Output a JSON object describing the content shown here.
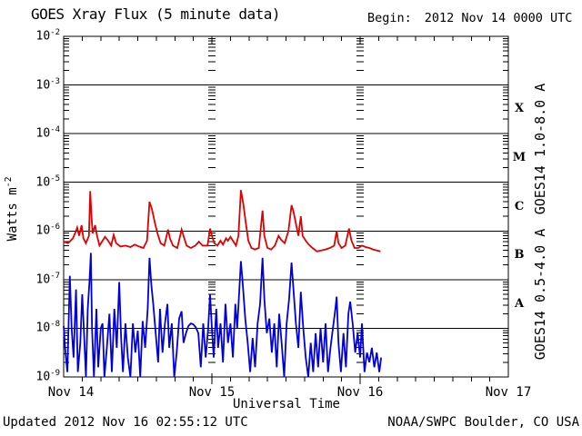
{
  "header": {
    "title": "GOES Xray Flux (5 minute data)",
    "begin_label": "Begin:",
    "begin_value": "2012 Nov 14 0000 UTC"
  },
  "footer": {
    "updated": "Updated 2012 Nov 16 02:55:12 UTC",
    "credit": "NOAA/SWPC Boulder, CO USA"
  },
  "colors": {
    "red_series": "#e00000",
    "blue_series": "#0000dd",
    "axis": "#000000",
    "background": "#ffffff"
  },
  "chart_data": {
    "type": "line",
    "title": "GOES Xray Flux (5 minute data)",
    "xlabel": "Universal Time",
    "ylabel_base": "Watts m",
    "ylabel_exp": "-2",
    "x_range_hours": [
      0,
      72
    ],
    "x_start": "2012 Nov 14 0000 UTC",
    "x_ticks": [
      {
        "hour": 0,
        "label": "Nov 14"
      },
      {
        "hour": 24,
        "label": "Nov 15"
      },
      {
        "hour": 48,
        "label": "Nov 16"
      },
      {
        "hour": 72,
        "label": "Nov 17"
      }
    ],
    "x_minor_tick_hours": 3,
    "day_boundary_hours": [
      24,
      48
    ],
    "y_scale": "log10",
    "y_log_range": [
      -9,
      -2
    ],
    "y_tick_exponents": [
      -2,
      -3,
      -4,
      -5,
      -6,
      -7,
      -8,
      -9
    ],
    "grid_decades": [
      -3,
      -4,
      -5,
      -6,
      -7,
      -8
    ],
    "flare_classes": [
      {
        "label": "X",
        "log_center": -3.5
      },
      {
        "label": "M",
        "log_center": -4.5
      },
      {
        "label": "C",
        "log_center": -5.5
      },
      {
        "label": "B",
        "log_center": -6.5
      },
      {
        "label": "A",
        "log_center": -7.5
      }
    ],
    "series": [
      {
        "name": "GOES14 1.0-8.0 A",
        "color": "#e00000",
        "points_format": "[hours_since_start, log10_watts_m2]",
        "points": [
          [
            0,
            -6.22
          ],
          [
            0.7,
            -6.25
          ],
          [
            1.5,
            -6.15
          ],
          [
            2,
            -6
          ],
          [
            2.2,
            -5.93
          ],
          [
            2.5,
            -6.1
          ],
          [
            2.9,
            -5.88
          ],
          [
            3.2,
            -6.15
          ],
          [
            3.6,
            -6.25
          ],
          [
            4.1,
            -6.1
          ],
          [
            4.3,
            -5.18
          ],
          [
            4.5,
            -5.7
          ],
          [
            4.7,
            -6.05
          ],
          [
            5.1,
            -5.88
          ],
          [
            5.4,
            -6.1
          ],
          [
            5.8,
            -6.3
          ],
          [
            6.3,
            -6.2
          ],
          [
            6.7,
            -6.12
          ],
          [
            7.2,
            -6.2
          ],
          [
            7.7,
            -6.3
          ],
          [
            8.1,
            -6.08
          ],
          [
            8.5,
            -6.25
          ],
          [
            9.2,
            -6.32
          ],
          [
            10,
            -6.3
          ],
          [
            10.8,
            -6.33
          ],
          [
            11.5,
            -6.28
          ],
          [
            12.2,
            -6.32
          ],
          [
            12.9,
            -6.35
          ],
          [
            13.5,
            -6.2
          ],
          [
            13.9,
            -5.4
          ],
          [
            14.3,
            -5.55
          ],
          [
            14.8,
            -5.85
          ],
          [
            15.2,
            -6.05
          ],
          [
            15.7,
            -6.25
          ],
          [
            16.3,
            -6.3
          ],
          [
            16.9,
            -5.97
          ],
          [
            17.2,
            -6.15
          ],
          [
            17.7,
            -6.3
          ],
          [
            18.4,
            -6.35
          ],
          [
            19.1,
            -5.97
          ],
          [
            19.4,
            -6.1
          ],
          [
            19.9,
            -6.3
          ],
          [
            20.6,
            -6.35
          ],
          [
            21.3,
            -6.3
          ],
          [
            21.9,
            -6.22
          ],
          [
            22.5,
            -6.3
          ],
          [
            23.3,
            -6.3
          ],
          [
            23.7,
            -5.95
          ],
          [
            24,
            -6.1
          ],
          [
            24.4,
            -6.25
          ],
          [
            24.9,
            -6.3
          ],
          [
            25.4,
            -6.2
          ],
          [
            25.8,
            -6.28
          ],
          [
            26.3,
            -6.15
          ],
          [
            26.6,
            -6.2
          ],
          [
            27,
            -6.12
          ],
          [
            27.4,
            -6.2
          ],
          [
            27.9,
            -6.3
          ],
          [
            28.3,
            -6.1
          ],
          [
            28.7,
            -5.16
          ],
          [
            29.1,
            -5.45
          ],
          [
            29.5,
            -5.85
          ],
          [
            29.9,
            -6.2
          ],
          [
            30.4,
            -6.35
          ],
          [
            31,
            -6.38
          ],
          [
            31.6,
            -6.35
          ],
          [
            32.2,
            -5.58
          ],
          [
            32.5,
            -6.1
          ],
          [
            33,
            -6.35
          ],
          [
            33.6,
            -6.38
          ],
          [
            34.2,
            -6.3
          ],
          [
            34.8,
            -6.1
          ],
          [
            35.2,
            -6.18
          ],
          [
            35.8,
            -6.25
          ],
          [
            36.4,
            -6
          ],
          [
            36.9,
            -5.47
          ],
          [
            37.2,
            -5.6
          ],
          [
            37.6,
            -5.85
          ],
          [
            38,
            -6.1
          ],
          [
            38.4,
            -5.7
          ],
          [
            38.7,
            -6.1
          ],
          [
            39.2,
            -6.2
          ],
          [
            39.7,
            -6.28
          ],
          [
            40.3,
            -6.35
          ],
          [
            41,
            -6.42
          ],
          [
            41.7,
            -6.4
          ],
          [
            42.4,
            -6.38
          ],
          [
            43.1,
            -6.35
          ],
          [
            43.8,
            -6.3
          ],
          [
            44.2,
            -6
          ],
          [
            44.5,
            -6.25
          ],
          [
            45,
            -6.35
          ],
          [
            45.6,
            -6.3
          ],
          [
            46.2,
            -5.95
          ],
          [
            46.6,
            -6.2
          ],
          [
            47.1,
            -6.35
          ],
          [
            47.7,
            -6.35
          ],
          [
            48.3,
            -6.3
          ],
          [
            48.9,
            -6.33
          ],
          [
            49.5,
            -6.35
          ],
          [
            50.1,
            -6.38
          ],
          [
            50.7,
            -6.4
          ],
          [
            51.3,
            -6.42
          ]
        ]
      },
      {
        "name": "GOES14 0.5-4.0 A",
        "color": "#0000dd",
        "points_format": "[hours_since_start, log10_watts_m2]",
        "points": [
          [
            0,
            -7.95
          ],
          [
            0.3,
            -8.5
          ],
          [
            0.6,
            -8.9
          ],
          [
            1,
            -6.92
          ],
          [
            1.3,
            -8
          ],
          [
            1.6,
            -8.6
          ],
          [
            2,
            -7.2
          ],
          [
            2.3,
            -8.9
          ],
          [
            2.7,
            -8.3
          ],
          [
            3,
            -7.3
          ],
          [
            3.3,
            -8.1
          ],
          [
            3.6,
            -9
          ],
          [
            3.9,
            -7.6
          ],
          [
            4.2,
            -7
          ],
          [
            4.4,
            -6.45
          ],
          [
            4.6,
            -8
          ],
          [
            4.9,
            -9
          ],
          [
            5.3,
            -7.6
          ],
          [
            5.6,
            -8.8
          ],
          [
            6,
            -8
          ],
          [
            6.3,
            -7.9
          ],
          [
            6.6,
            -9
          ],
          [
            7,
            -8.4
          ],
          [
            7.4,
            -7.7
          ],
          [
            7.8,
            -8.9
          ],
          [
            8.2,
            -7.6
          ],
          [
            8.6,
            -8.4
          ],
          [
            9,
            -7.05
          ],
          [
            9.3,
            -8.2
          ],
          [
            9.6,
            -8.9
          ],
          [
            10,
            -7.9
          ],
          [
            10.4,
            -8.6
          ],
          [
            10.8,
            -9
          ],
          [
            11.2,
            -7.9
          ],
          [
            11.6,
            -8.5
          ],
          [
            12,
            -8.05
          ],
          [
            12.4,
            -9
          ],
          [
            12.8,
            -7.85
          ],
          [
            13.2,
            -8.4
          ],
          [
            13.6,
            -7.6
          ],
          [
            13.9,
            -6.55
          ],
          [
            14.2,
            -7.1
          ],
          [
            14.5,
            -7.5
          ],
          [
            14.9,
            -8.1
          ],
          [
            15.3,
            -8.7
          ],
          [
            15.6,
            -7.6
          ],
          [
            16,
            -8.5
          ],
          [
            16.4,
            -7.9
          ],
          [
            16.8,
            -7.5
          ],
          [
            17.1,
            -8.4
          ],
          [
            17.5,
            -7.9
          ],
          [
            17.9,
            -9
          ],
          [
            18.3,
            -8.5
          ],
          [
            18.7,
            -7.8
          ],
          [
            19.1,
            -7.65
          ],
          [
            19.4,
            -8.3
          ],
          [
            19.8,
            -8.1
          ],
          [
            20.2,
            -7.95
          ],
          [
            20.6,
            -7.9
          ],
          [
            21,
            -7.92
          ],
          [
            21.4,
            -7.98
          ],
          [
            21.8,
            -8.1
          ],
          [
            22.2,
            -8.8
          ],
          [
            22.6,
            -7.9
          ],
          [
            23,
            -8.6
          ],
          [
            23.4,
            -8
          ],
          [
            23.7,
            -7.3
          ],
          [
            24,
            -8
          ],
          [
            24.3,
            -8.6
          ],
          [
            24.7,
            -7.6
          ],
          [
            25,
            -8.4
          ],
          [
            25.4,
            -7.9
          ],
          [
            25.8,
            -8.7
          ],
          [
            26.2,
            -7.5
          ],
          [
            26.6,
            -8.3
          ],
          [
            27,
            -7.9
          ],
          [
            27.4,
            -8.6
          ],
          [
            27.8,
            -7.5
          ],
          [
            28.1,
            -8
          ],
          [
            28.4,
            -7.3
          ],
          [
            28.7,
            -6.62
          ],
          [
            29,
            -7.1
          ],
          [
            29.4,
            -7.8
          ],
          [
            29.8,
            -8.3
          ],
          [
            30.2,
            -8.9
          ],
          [
            30.6,
            -8.2
          ],
          [
            31,
            -8.8
          ],
          [
            31.4,
            -7.9
          ],
          [
            31.8,
            -7.5
          ],
          [
            32.2,
            -6.55
          ],
          [
            32.5,
            -7.4
          ],
          [
            32.9,
            -8.1
          ],
          [
            33.3,
            -7.8
          ],
          [
            33.7,
            -8.5
          ],
          [
            34.1,
            -7.9
          ],
          [
            34.5,
            -8.8
          ],
          [
            34.9,
            -7.7
          ],
          [
            35.3,
            -8.3
          ],
          [
            35.7,
            -9
          ],
          [
            36.1,
            -7.9
          ],
          [
            36.5,
            -7.4
          ],
          [
            36.9,
            -6.65
          ],
          [
            37.2,
            -7.2
          ],
          [
            37.6,
            -7.9
          ],
          [
            38,
            -8.4
          ],
          [
            38.4,
            -7.25
          ],
          [
            38.8,
            -8
          ],
          [
            39.2,
            -8.6
          ],
          [
            39.6,
            -9
          ],
          [
            40,
            -8.3
          ],
          [
            40.4,
            -8.9
          ],
          [
            40.8,
            -8.1
          ],
          [
            41.2,
            -8.8
          ],
          [
            41.6,
            -8
          ],
          [
            42,
            -8.7
          ],
          [
            42.4,
            -7.9
          ],
          [
            42.8,
            -8.9
          ],
          [
            43.2,
            -8.4
          ],
          [
            43.6,
            -8
          ],
          [
            44,
            -7.6
          ],
          [
            44.2,
            -7.35
          ],
          [
            44.5,
            -8.3
          ],
          [
            44.9,
            -8.9
          ],
          [
            45.3,
            -8.1
          ],
          [
            45.7,
            -8.8
          ],
          [
            46.1,
            -7.7
          ],
          [
            46.4,
            -7.45
          ],
          [
            46.8,
            -7.9
          ],
          [
            47.2,
            -8.5
          ],
          [
            47.6,
            -8.1
          ],
          [
            48,
            -8.6
          ],
          [
            48.3,
            -7.9
          ],
          [
            48.7,
            -8.9
          ],
          [
            49.1,
            -8.5
          ],
          [
            49.5,
            -8.7
          ],
          [
            49.9,
            -8.4
          ],
          [
            50.3,
            -8.8
          ],
          [
            50.7,
            -8.5
          ],
          [
            51.1,
            -8.9
          ],
          [
            51.4,
            -8.6
          ]
        ]
      }
    ]
  }
}
